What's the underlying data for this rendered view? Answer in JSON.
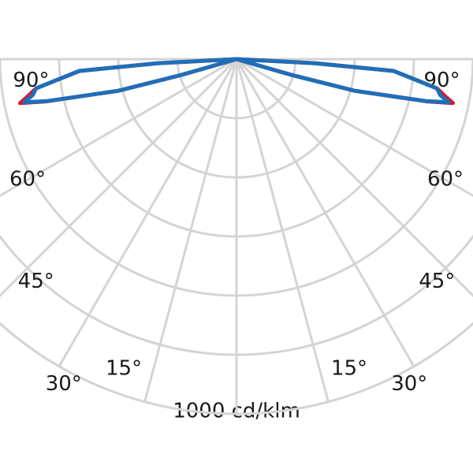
{
  "chart_data": {
    "type": "polar",
    "unit_label": "1000 cd/klm",
    "rlim": [
      0,
      1200
    ],
    "rticks": [
      200,
      400,
      600,
      800,
      1000,
      1200
    ],
    "thetaticks": [
      {
        "value": 90,
        "label": "90°"
      },
      {
        "value": 60,
        "label": "60°"
      },
      {
        "value": 45,
        "label": "45°"
      },
      {
        "value": 30,
        "label": "30°"
      },
      {
        "value": 15,
        "label": "15°"
      }
    ],
    "grid": true,
    "theta": [
      70,
      74,
      75,
      77.5,
      78.5,
      80,
      81.7,
      85.7,
      87,
      90
    ],
    "series": [
      {
        "color": "#d7192a",
        "values": [
          0,
          195,
          413,
          660,
          747,
          715,
          685,
          533,
          267,
          0
        ]
      },
      {
        "color": "#1f6fb8",
        "values": [
          0,
          195,
          413,
          656,
          733,
          700,
          685,
          533,
          267,
          0
        ]
      }
    ]
  }
}
